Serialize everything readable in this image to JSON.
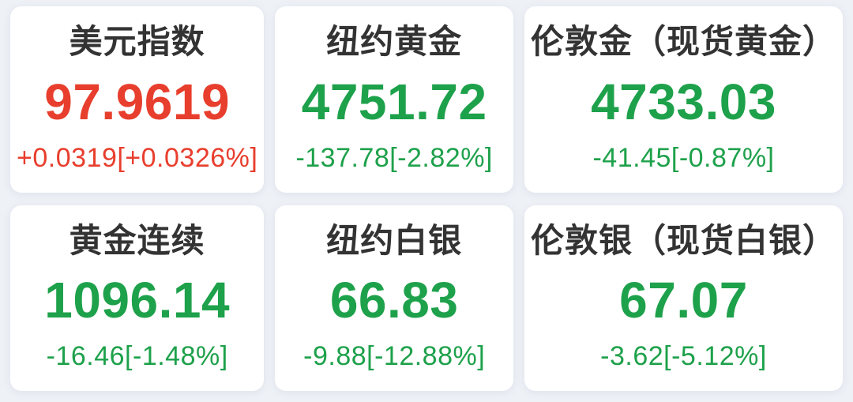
{
  "page": {
    "colors": {
      "page_bg": "#eef1f6",
      "card_bg": "#ffffff",
      "title": "#333333",
      "up": "#e83e2d",
      "down": "#1ea14b"
    }
  },
  "tiles": [
    {
      "name": "美元指数",
      "price": "97.9619",
      "change": "+0.0319[+0.0326%]",
      "direction": "up"
    },
    {
      "name": "纽约黄金",
      "price": "4751.72",
      "change": "-137.78[-2.82%]",
      "direction": "down"
    },
    {
      "name": "伦敦金（现货黄金）",
      "price": "4733.03",
      "change": "-41.45[-0.87%]",
      "direction": "down"
    },
    {
      "name": "黄金连续",
      "price": "1096.14",
      "change": "-16.46[-1.48%]",
      "direction": "down"
    },
    {
      "name": "纽约白银",
      "price": "66.83",
      "change": "-9.88[-12.88%]",
      "direction": "down"
    },
    {
      "name": "伦敦银（现货白银）",
      "price": "67.07",
      "change": "-3.62[-5.12%]",
      "direction": "down"
    }
  ]
}
